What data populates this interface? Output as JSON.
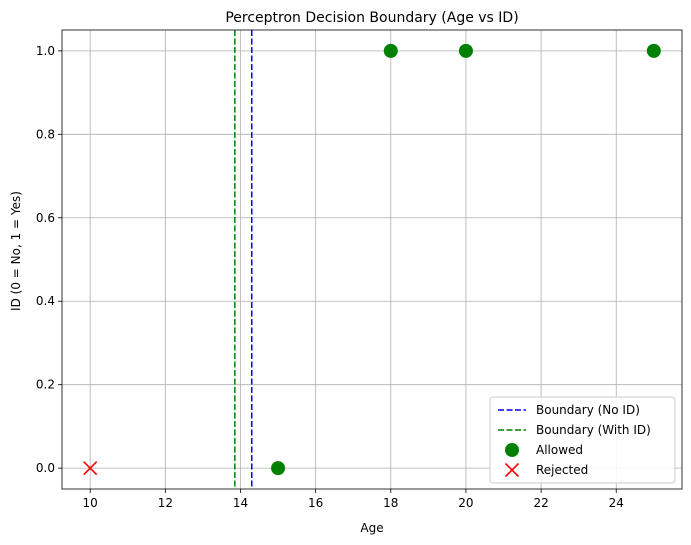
{
  "chart_data": {
    "type": "scatter",
    "title": "Perceptron Decision Boundary (Age vs ID)",
    "xlabel": "Age",
    "ylabel": "ID (0 = No, 1 = Yes)",
    "xlim": [
      9.25,
      25.75
    ],
    "ylim": [
      -0.05,
      1.05
    ],
    "xticks": [
      10,
      12,
      14,
      16,
      18,
      20,
      22,
      24
    ],
    "xtick_labels": [
      "10",
      "12",
      "14",
      "16",
      "18",
      "20",
      "22",
      "24"
    ],
    "yticks": [
      0.0,
      0.2,
      0.4,
      0.6,
      0.8,
      1.0
    ],
    "ytick_labels": [
      "0.0",
      "0.2",
      "0.4",
      "0.6",
      "0.8",
      "1.0"
    ],
    "grid": true,
    "legend_position": "bottom-right",
    "boundaries": [
      {
        "name": "Boundary (No ID)",
        "x": 14.3,
        "color": "#0000ff",
        "style": "dashed"
      },
      {
        "name": "Boundary (With ID)",
        "x": 13.85,
        "color": "#008000",
        "style": "dashed"
      }
    ],
    "series": [
      {
        "name": "Allowed",
        "marker": "circle",
        "color": "#008000",
        "points": [
          {
            "x": 15,
            "y": 0
          },
          {
            "x": 18,
            "y": 1
          },
          {
            "x": 20,
            "y": 1
          },
          {
            "x": 25,
            "y": 1
          }
        ]
      },
      {
        "name": "Rejected",
        "marker": "x",
        "color": "#ff0000",
        "points": [
          {
            "x": 10,
            "y": 0
          }
        ]
      }
    ]
  }
}
